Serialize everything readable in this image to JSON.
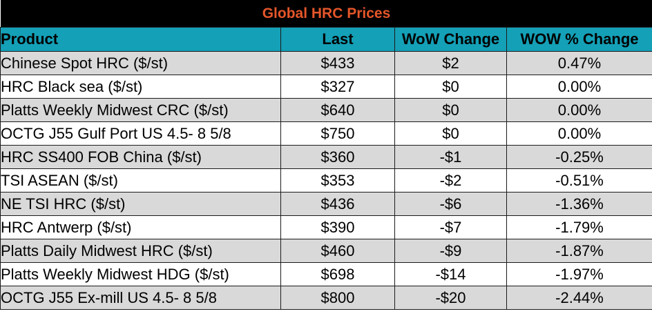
{
  "title": "Global HRC Prices",
  "headers": [
    "Product",
    "Last",
    "WoW Change",
    "WOW % Change"
  ],
  "rows": [
    [
      "Chinese Spot HRC ($/st)",
      "$433",
      "$2",
      "0.47%"
    ],
    [
      "HRC Black sea ($/st)",
      "$327",
      "$0",
      "0.00%"
    ],
    [
      "Platts Weekly Midwest CRC ($/st)",
      "$640",
      "$0",
      "0.00%"
    ],
    [
      "OCTG J55 Gulf Port US 4.5- 8 5/8",
      "$750",
      "$0",
      "0.00%"
    ],
    [
      "HRC SS400 FOB China ($/st)",
      "$360",
      "-$1",
      "-0.25%"
    ],
    [
      "TSI ASEAN ($/st)",
      "$353",
      "-$2",
      "-0.51%"
    ],
    [
      "NE TSI HRC ($/st)",
      "$436",
      "-$6",
      "-1.36%"
    ],
    [
      "HRC Antwerp ($/st)",
      "$390",
      "-$7",
      "-1.79%"
    ],
    [
      "Platts Daily Midwest HRC ($/st)",
      "$460",
      "-$9",
      "-1.87%"
    ],
    [
      "Platts Weekly Midwest HDG ($/st)",
      "$698",
      "-$14",
      "-1.97%"
    ],
    [
      "OCTG J55 Ex-mill US 4.5- 8 5/8",
      "$800",
      "-$20",
      "-2.44%"
    ]
  ],
  "colors": {
    "title_bg": "#000000",
    "title_text": "#e4562a",
    "header_bg": "#14a0b7",
    "row_shade": "#d9d9d9"
  }
}
